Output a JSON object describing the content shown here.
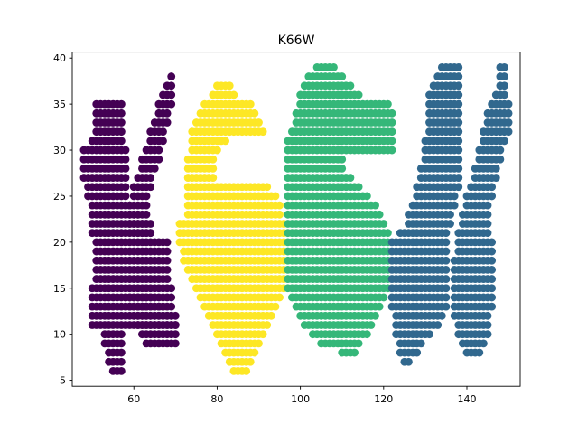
{
  "chart_data": {
    "type": "scatter",
    "title": "K66W",
    "xlabel": "",
    "ylabel": "",
    "xlim": [
      45.2,
      152.8
    ],
    "ylim": [
      4.35,
      40.65
    ],
    "xticks": [
      60,
      80,
      100,
      120,
      140
    ],
    "yticks": [
      5,
      10,
      15,
      20,
      25,
      30,
      35,
      40
    ],
    "grid": false,
    "legend": "none",
    "marker_radius_note": "circle markers",
    "series": [
      {
        "color": "#440154",
        "row_spacing": 1,
        "point_spacing": 1,
        "runs": [
          [
            35,
            51,
            57
          ],
          [
            34,
            51,
            57
          ],
          [
            33,
            51,
            57
          ],
          [
            32,
            51,
            57
          ],
          [
            31,
            50,
            57
          ],
          [
            30,
            48,
            58
          ],
          [
            29,
            48,
            58
          ],
          [
            28,
            48,
            58
          ],
          [
            27,
            48,
            58
          ],
          [
            26,
            49,
            58
          ],
          [
            25,
            49,
            58
          ],
          [
            24,
            50,
            59
          ],
          [
            23,
            50,
            61
          ],
          [
            22,
            50,
            63
          ],
          [
            21,
            50,
            64
          ],
          [
            20,
            51,
            68
          ],
          [
            19,
            51,
            68
          ],
          [
            18,
            51,
            68
          ],
          [
            17,
            51,
            68
          ],
          [
            16,
            51,
            68
          ],
          [
            15,
            50,
            69
          ],
          [
            14,
            50,
            69
          ],
          [
            13,
            50,
            69
          ],
          [
            12,
            50,
            70
          ],
          [
            11,
            50,
            70
          ],
          [
            10,
            53,
            57
          ],
          [
            9,
            53,
            57
          ],
          [
            8,
            54,
            57
          ],
          [
            7,
            54,
            57
          ],
          [
            6,
            55,
            57
          ],
          [
            38,
            69,
            69
          ],
          [
            37,
            68,
            69
          ],
          [
            36,
            67,
            69
          ],
          [
            35,
            66,
            69
          ],
          [
            34,
            66,
            68
          ],
          [
            33,
            65,
            68
          ],
          [
            32,
            64,
            67
          ],
          [
            31,
            64,
            67
          ],
          [
            30,
            63,
            66
          ],
          [
            29,
            62,
            66
          ],
          [
            28,
            62,
            65
          ],
          [
            27,
            61,
            64
          ],
          [
            26,
            60,
            64
          ],
          [
            25,
            60,
            63
          ],
          [
            24,
            59,
            63
          ],
          [
            23,
            59,
            63
          ],
          [
            22,
            59,
            64
          ],
          [
            21,
            60,
            64
          ],
          [
            14,
            58,
            65
          ],
          [
            13,
            59,
            67
          ],
          [
            12,
            60,
            69
          ],
          [
            11,
            61,
            70
          ],
          [
            10,
            62,
            70
          ],
          [
            9,
            63,
            70
          ]
        ]
      },
      {
        "color": "#fde725",
        "row_spacing": 1,
        "point_spacing": 1,
        "runs": [
          [
            37,
            80,
            83
          ],
          [
            36,
            79,
            84
          ],
          [
            35,
            77,
            88
          ],
          [
            34,
            76,
            89
          ],
          [
            33,
            75,
            90
          ],
          [
            32,
            74,
            91
          ],
          [
            31,
            74,
            82
          ],
          [
            30,
            74,
            80
          ],
          [
            29,
            73,
            79
          ],
          [
            28,
            73,
            79
          ],
          [
            27,
            73,
            79
          ],
          [
            26,
            73,
            92
          ],
          [
            25,
            73,
            94
          ],
          [
            24,
            73,
            95
          ],
          [
            23,
            73,
            95
          ],
          [
            22,
            71,
            96
          ],
          [
            21,
            71,
            96
          ],
          [
            20,
            71,
            96
          ],
          [
            19,
            72,
            96
          ],
          [
            18,
            72,
            96
          ],
          [
            17,
            73,
            96
          ],
          [
            16,
            74,
            96
          ],
          [
            15,
            75,
            96
          ],
          [
            14,
            76,
            95
          ],
          [
            13,
            77,
            94
          ],
          [
            12,
            78,
            93
          ],
          [
            11,
            79,
            92
          ],
          [
            10,
            80,
            91
          ],
          [
            9,
            81,
            90
          ],
          [
            8,
            82,
            89
          ],
          [
            7,
            83,
            88
          ],
          [
            6,
            84,
            87
          ]
        ]
      },
      {
        "color": "#35b779",
        "row_spacing": 1,
        "point_spacing": 1,
        "runs": [
          [
            39,
            104,
            108
          ],
          [
            38,
            102,
            110
          ],
          [
            37,
            101,
            112
          ],
          [
            36,
            100,
            114
          ],
          [
            35,
            100,
            121
          ],
          [
            34,
            99,
            122
          ],
          [
            33,
            99,
            122
          ],
          [
            32,
            98,
            122
          ],
          [
            31,
            97,
            122
          ],
          [
            30,
            97,
            122
          ],
          [
            29,
            97,
            110
          ],
          [
            28,
            97,
            110
          ],
          [
            27,
            97,
            112
          ],
          [
            26,
            97,
            114
          ],
          [
            25,
            97,
            116
          ],
          [
            24,
            97,
            118
          ],
          [
            23,
            97,
            119
          ],
          [
            22,
            97,
            120
          ],
          [
            21,
            97,
            121
          ],
          [
            20,
            97,
            121
          ],
          [
            19,
            97,
            121
          ],
          [
            18,
            97,
            121
          ],
          [
            17,
            97,
            121
          ],
          [
            16,
            97,
            121
          ],
          [
            15,
            97,
            121
          ],
          [
            14,
            98,
            120
          ],
          [
            13,
            99,
            119
          ],
          [
            12,
            100,
            118
          ],
          [
            11,
            101,
            117
          ],
          [
            10,
            103,
            116
          ],
          [
            9,
            105,
            114
          ],
          [
            8,
            110,
            113
          ]
        ]
      },
      {
        "color": "#31688e",
        "row_spacing": 1,
        "point_spacing": 1,
        "runs": [
          [
            39,
            134,
            138
          ],
          [
            38,
            133,
            138
          ],
          [
            37,
            132,
            138
          ],
          [
            36,
            131,
            138
          ],
          [
            35,
            131,
            138
          ],
          [
            34,
            131,
            138
          ],
          [
            33,
            131,
            138
          ],
          [
            32,
            131,
            138
          ],
          [
            31,
            130,
            138
          ],
          [
            30,
            130,
            138
          ],
          [
            29,
            130,
            138
          ],
          [
            28,
            129,
            138
          ],
          [
            27,
            129,
            138
          ],
          [
            26,
            128,
            138
          ],
          [
            25,
            128,
            137
          ],
          [
            24,
            127,
            137
          ],
          [
            23,
            126,
            136
          ],
          [
            22,
            126,
            136
          ],
          [
            21,
            124,
            135
          ],
          [
            20,
            122,
            135
          ],
          [
            19,
            122,
            135
          ],
          [
            18,
            122,
            135
          ],
          [
            17,
            122,
            135
          ],
          [
            16,
            122,
            135
          ],
          [
            15,
            122,
            135
          ],
          [
            14,
            122,
            135
          ],
          [
            13,
            122,
            135
          ],
          [
            12,
            123,
            134
          ],
          [
            11,
            123,
            133
          ],
          [
            10,
            123,
            131
          ],
          [
            9,
            124,
            129
          ],
          [
            8,
            124,
            128
          ],
          [
            7,
            125,
            126
          ],
          [
            39,
            148,
            149
          ],
          [
            38,
            148,
            149
          ],
          [
            37,
            148,
            149
          ],
          [
            36,
            147,
            149
          ],
          [
            35,
            146,
            150
          ],
          [
            34,
            145,
            150
          ],
          [
            33,
            145,
            150
          ],
          [
            32,
            144,
            150
          ],
          [
            31,
            144,
            149
          ],
          [
            30,
            143,
            148
          ],
          [
            29,
            143,
            148
          ],
          [
            28,
            142,
            147
          ],
          [
            27,
            142,
            147
          ],
          [
            26,
            141,
            146
          ],
          [
            25,
            140,
            146
          ],
          [
            24,
            140,
            145
          ],
          [
            23,
            139,
            145
          ],
          [
            22,
            139,
            145
          ],
          [
            21,
            138,
            145
          ],
          [
            20,
            138,
            146
          ],
          [
            19,
            138,
            146
          ],
          [
            18,
            137,
            146
          ],
          [
            17,
            137,
            146
          ],
          [
            16,
            137,
            146
          ],
          [
            15,
            137,
            146
          ],
          [
            14,
            137,
            146
          ],
          [
            13,
            137,
            146
          ],
          [
            12,
            137,
            145
          ],
          [
            11,
            138,
            145
          ],
          [
            10,
            138,
            145
          ],
          [
            9,
            139,
            144
          ],
          [
            8,
            140,
            143
          ]
        ]
      }
    ]
  }
}
